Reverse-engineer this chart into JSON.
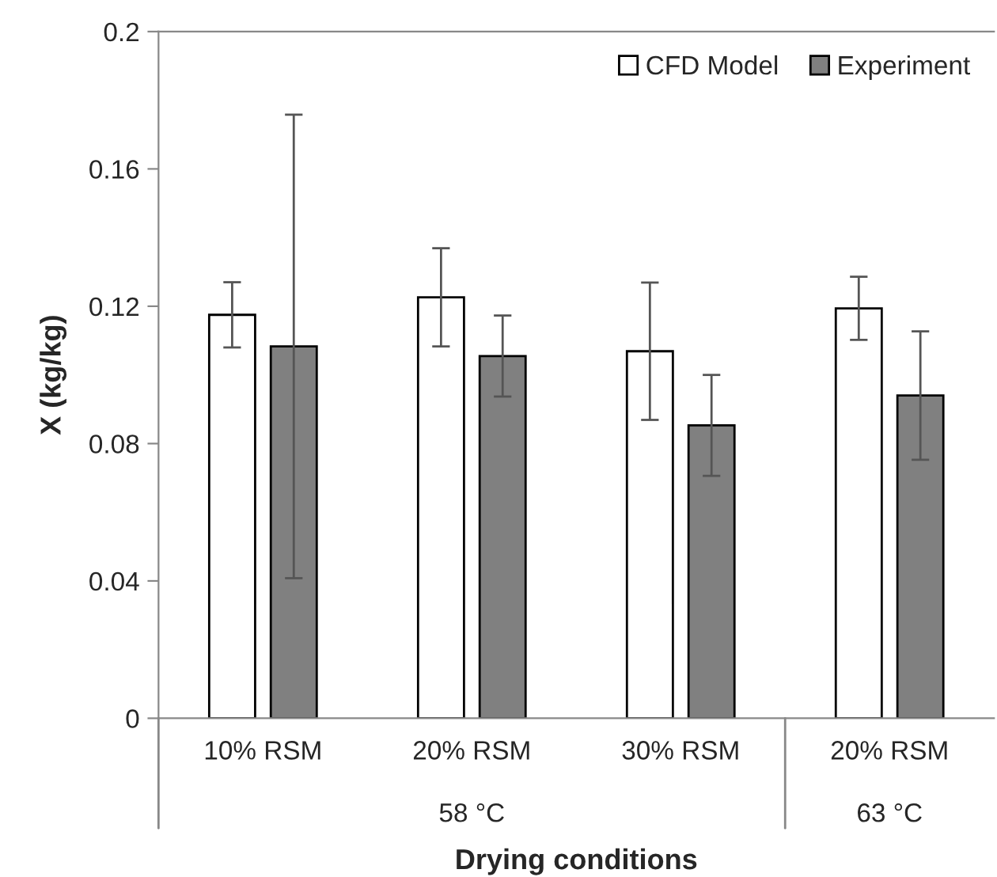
{
  "chart_data": {
    "type": "bar",
    "xlabel": "Drying conditions",
    "ylabel": "X (kg/kg)",
    "categories": [
      "10% RSM",
      "20% RSM",
      "30% RSM",
      "20% RSM"
    ],
    "series": [
      {
        "name": "CFD Model",
        "color": "#ffffff",
        "values": [
          0.1175,
          0.1226,
          0.1069,
          0.1194
        ],
        "errors": [
          0.0095,
          0.0143,
          0.02,
          0.0092
        ]
      },
      {
        "name": "Experiment",
        "color": "#808080",
        "values": [
          0.1083,
          0.1055,
          0.0853,
          0.094
        ],
        "errors": [
          0.0675,
          0.0118,
          0.0147,
          0.0187
        ]
      }
    ],
    "annotations": [
      "58 °C",
      "63 °C"
    ],
    "ylim": [
      0,
      0.2
    ],
    "yticks": [
      0,
      0.04,
      0.08,
      0.12,
      0.16,
      0.2
    ],
    "grid": false,
    "legend": "top right"
  }
}
